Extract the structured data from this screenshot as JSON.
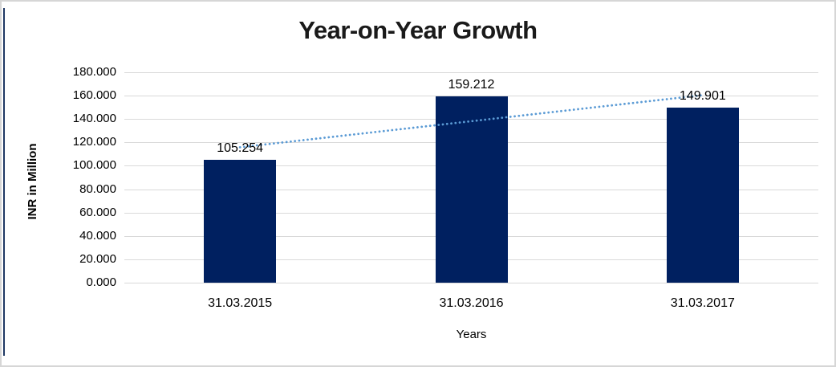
{
  "chart_data": {
    "type": "bar",
    "title": "Year-on-Year Growth",
    "categories": [
      "31.03.2015",
      "31.03.2016",
      "31.03.2017"
    ],
    "values": [
      105.254,
      159.212,
      149.901
    ],
    "data_labels": [
      "105.254",
      "159.212",
      "149.901"
    ],
    "xlabel": "Years",
    "ylabel": "INR in Million",
    "ylim": [
      0,
      180
    ],
    "ytick_step": 20,
    "ytick_labels": [
      "180.000",
      "160.000",
      "140.000",
      "120.000",
      "100.000",
      "80.000",
      "60.000",
      "40.000",
      "20.000",
      "0.000"
    ],
    "grid": true,
    "legend": "none",
    "trendline": {
      "style": "dotted",
      "endpoint_values": [
        115.85,
        160.45
      ]
    },
    "colors": {
      "bar": "#002060",
      "trend": "#5B9BD5",
      "gridline": "#D9D9D9",
      "text": "#000000",
      "title_text": "#1A1A1A",
      "accent_strip": "#1F3864",
      "frame_border": "#D6D6D6",
      "background": "#FFFFFF"
    }
  }
}
